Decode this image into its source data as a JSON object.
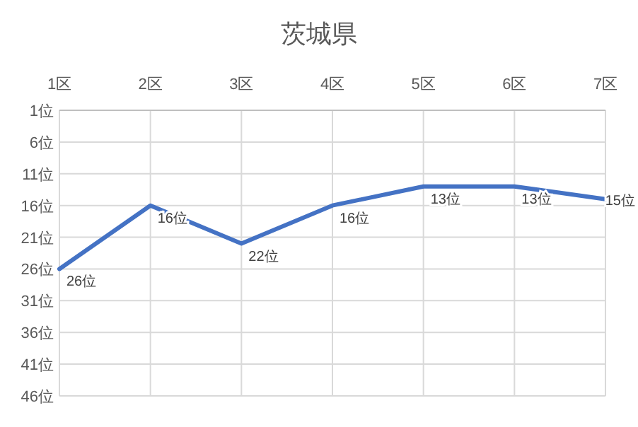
{
  "chart_data": {
    "type": "line",
    "title": "茨城県",
    "categories": [
      "1区",
      "2区",
      "3区",
      "4区",
      "5区",
      "6区",
      "7区"
    ],
    "series": [
      {
        "color": "#4472c4",
        "values": [
          26,
          16,
          22,
          16,
          13,
          13,
          15
        ],
        "value_labels": [
          "26位",
          "16位",
          "22位",
          "16位",
          "13位",
          "13位",
          "15位"
        ]
      }
    ],
    "ylim": [
      46,
      1
    ],
    "yticks": [
      {
        "value": 1,
        "label": "1位"
      },
      {
        "value": 6,
        "label": "6位"
      },
      {
        "value": 11,
        "label": "11位"
      },
      {
        "value": 16,
        "label": "16位"
      },
      {
        "value": 21,
        "label": "21位"
      },
      {
        "value": 26,
        "label": "26位"
      },
      {
        "value": 31,
        "label": "31位"
      },
      {
        "value": 36,
        "label": "36位"
      },
      {
        "value": 41,
        "label": "41位"
      },
      {
        "value": 46,
        "label": "46位"
      }
    ],
    "grid": true,
    "marker": "none",
    "line_style": "solid"
  }
}
